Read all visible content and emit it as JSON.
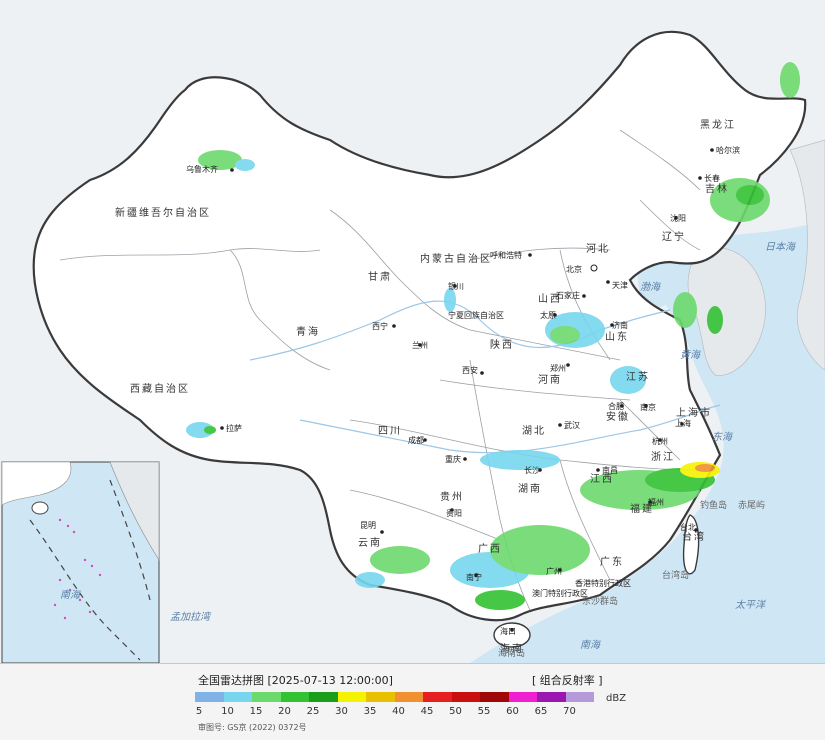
{
  "legend": {
    "title": "全国雷达拼图 [2025-07-13 12:00:00]",
    "product": "[ 组合反射率 ]",
    "unit": "dBZ",
    "ticks": [
      "5",
      "10",
      "15",
      "20",
      "25",
      "30",
      "35",
      "40",
      "45",
      "50",
      "55",
      "60",
      "65",
      "70"
    ],
    "colors": [
      "#7fb2e6",
      "#77d6ee",
      "#6cd96c",
      "#33c233",
      "#1a9e1a",
      "#f5f200",
      "#e8c000",
      "#f09030",
      "#e62020",
      "#c81010",
      "#a00808",
      "#f020d0",
      "#9a18b0",
      "#b49ad8"
    ]
  },
  "approval": "审图号: GS京 (2022) 0372号",
  "map": {
    "provinces": [
      {
        "key": "xinjiang",
        "label": "新疆维吾尔自治区"
      },
      {
        "key": "xizang",
        "label": "西藏自治区"
      },
      {
        "key": "qinghai",
        "label": "青海"
      },
      {
        "key": "gansu",
        "label": "甘肃"
      },
      {
        "key": "neimenggu",
        "label": "内蒙古自治区"
      },
      {
        "key": "heilongjiang",
        "label": "黑龙江"
      },
      {
        "key": "jilin",
        "label": "吉林"
      },
      {
        "key": "liaoning",
        "label": "辽宁"
      },
      {
        "key": "hebei",
        "label": "河北"
      },
      {
        "key": "shanxi",
        "label": "山西"
      },
      {
        "key": "shandong",
        "label": "山东"
      },
      {
        "key": "henan",
        "label": "河南"
      },
      {
        "key": "shaanxi",
        "label": "陕西"
      },
      {
        "key": "sichuan",
        "label": "四川"
      },
      {
        "key": "hubei",
        "label": "湖北"
      },
      {
        "key": "hunan",
        "label": "湖南"
      },
      {
        "key": "jiangxi",
        "label": "江西"
      },
      {
        "key": "zhejiang",
        "label": "浙江"
      },
      {
        "key": "fujian",
        "label": "福建"
      },
      {
        "key": "guangdong",
        "label": "广东"
      },
      {
        "key": "guangxi",
        "label": "广西"
      },
      {
        "key": "yunnan",
        "label": "云南"
      },
      {
        "key": "guizhou",
        "label": "贵州"
      },
      {
        "key": "jiangsu",
        "label": "江苏"
      },
      {
        "key": "anhui",
        "label": "安徽"
      },
      {
        "key": "hainan",
        "label": "海南"
      },
      {
        "key": "taiwan",
        "label": "台湾"
      },
      {
        "key": "shanghai",
        "label": "上海市"
      },
      {
        "key": "ningxia",
        "label": "宁夏回族自治区"
      }
    ],
    "cities": [
      {
        "key": "urumqi",
        "label": "乌鲁木齐"
      },
      {
        "key": "lhasa",
        "label": "拉萨"
      },
      {
        "key": "xining",
        "label": "西宁"
      },
      {
        "key": "lanzhou",
        "label": "兰州"
      },
      {
        "key": "yinchuan",
        "label": "银川"
      },
      {
        "key": "hohhot",
        "label": "呼和浩特"
      },
      {
        "key": "harbin",
        "label": "哈尔滨"
      },
      {
        "key": "changchun",
        "label": "长春"
      },
      {
        "key": "shenyang",
        "label": "沈阳"
      },
      {
        "key": "beijing",
        "label": "北京"
      },
      {
        "key": "tianjin",
        "label": "天津"
      },
      {
        "key": "shijiazhuang",
        "label": "石家庄"
      },
      {
        "key": "taiyuan",
        "label": "太原"
      },
      {
        "key": "jinan",
        "label": "济南"
      },
      {
        "key": "zhengzhou",
        "label": "郑州"
      },
      {
        "key": "xian",
        "label": "西安"
      },
      {
        "key": "chengdu",
        "label": "成都"
      },
      {
        "key": "chongqing",
        "label": "重庆"
      },
      {
        "key": "wuhan",
        "label": "武汉"
      },
      {
        "key": "hefei",
        "label": "合肥"
      },
      {
        "key": "nanjing",
        "label": "南京"
      },
      {
        "key": "shanghai",
        "label": "上海"
      },
      {
        "key": "hangzhou",
        "label": "杭州"
      },
      {
        "key": "nanchang",
        "label": "南昌"
      },
      {
        "key": "changsha",
        "label": "长沙"
      },
      {
        "key": "fuzhou",
        "label": "福州"
      },
      {
        "key": "guiyang",
        "label": "贵阳"
      },
      {
        "key": "kunming",
        "label": "昆明"
      },
      {
        "key": "nanning",
        "label": "南宁"
      },
      {
        "key": "guangzhou",
        "label": "广州"
      },
      {
        "key": "haikou",
        "label": "海口"
      },
      {
        "key": "taipei",
        "label": "台北"
      },
      {
        "key": "hk",
        "label": "香港特别行政区"
      },
      {
        "key": "macau",
        "label": "澳门特别行政区"
      }
    ],
    "seas": [
      {
        "key": "bohai",
        "label": "渤海"
      },
      {
        "key": "huanghai",
        "label": "黄海"
      },
      {
        "key": "donghai",
        "label": "东海"
      },
      {
        "key": "nanhai",
        "label": "南海"
      },
      {
        "key": "pacific",
        "label": "太平洋"
      },
      {
        "key": "japansea",
        "label": "日本海"
      },
      {
        "key": "bengal",
        "label": "孟加拉湾"
      }
    ],
    "islands": [
      {
        "key": "diaoyu",
        "label": "钓鱼岛"
      },
      {
        "key": "chiwei",
        "label": "赤尾屿"
      },
      {
        "key": "taiwan_isl",
        "label": "台湾岛"
      },
      {
        "key": "dongsha",
        "label": "东沙群岛"
      },
      {
        "key": "hainan_isl",
        "label": "海南岛"
      }
    ]
  }
}
